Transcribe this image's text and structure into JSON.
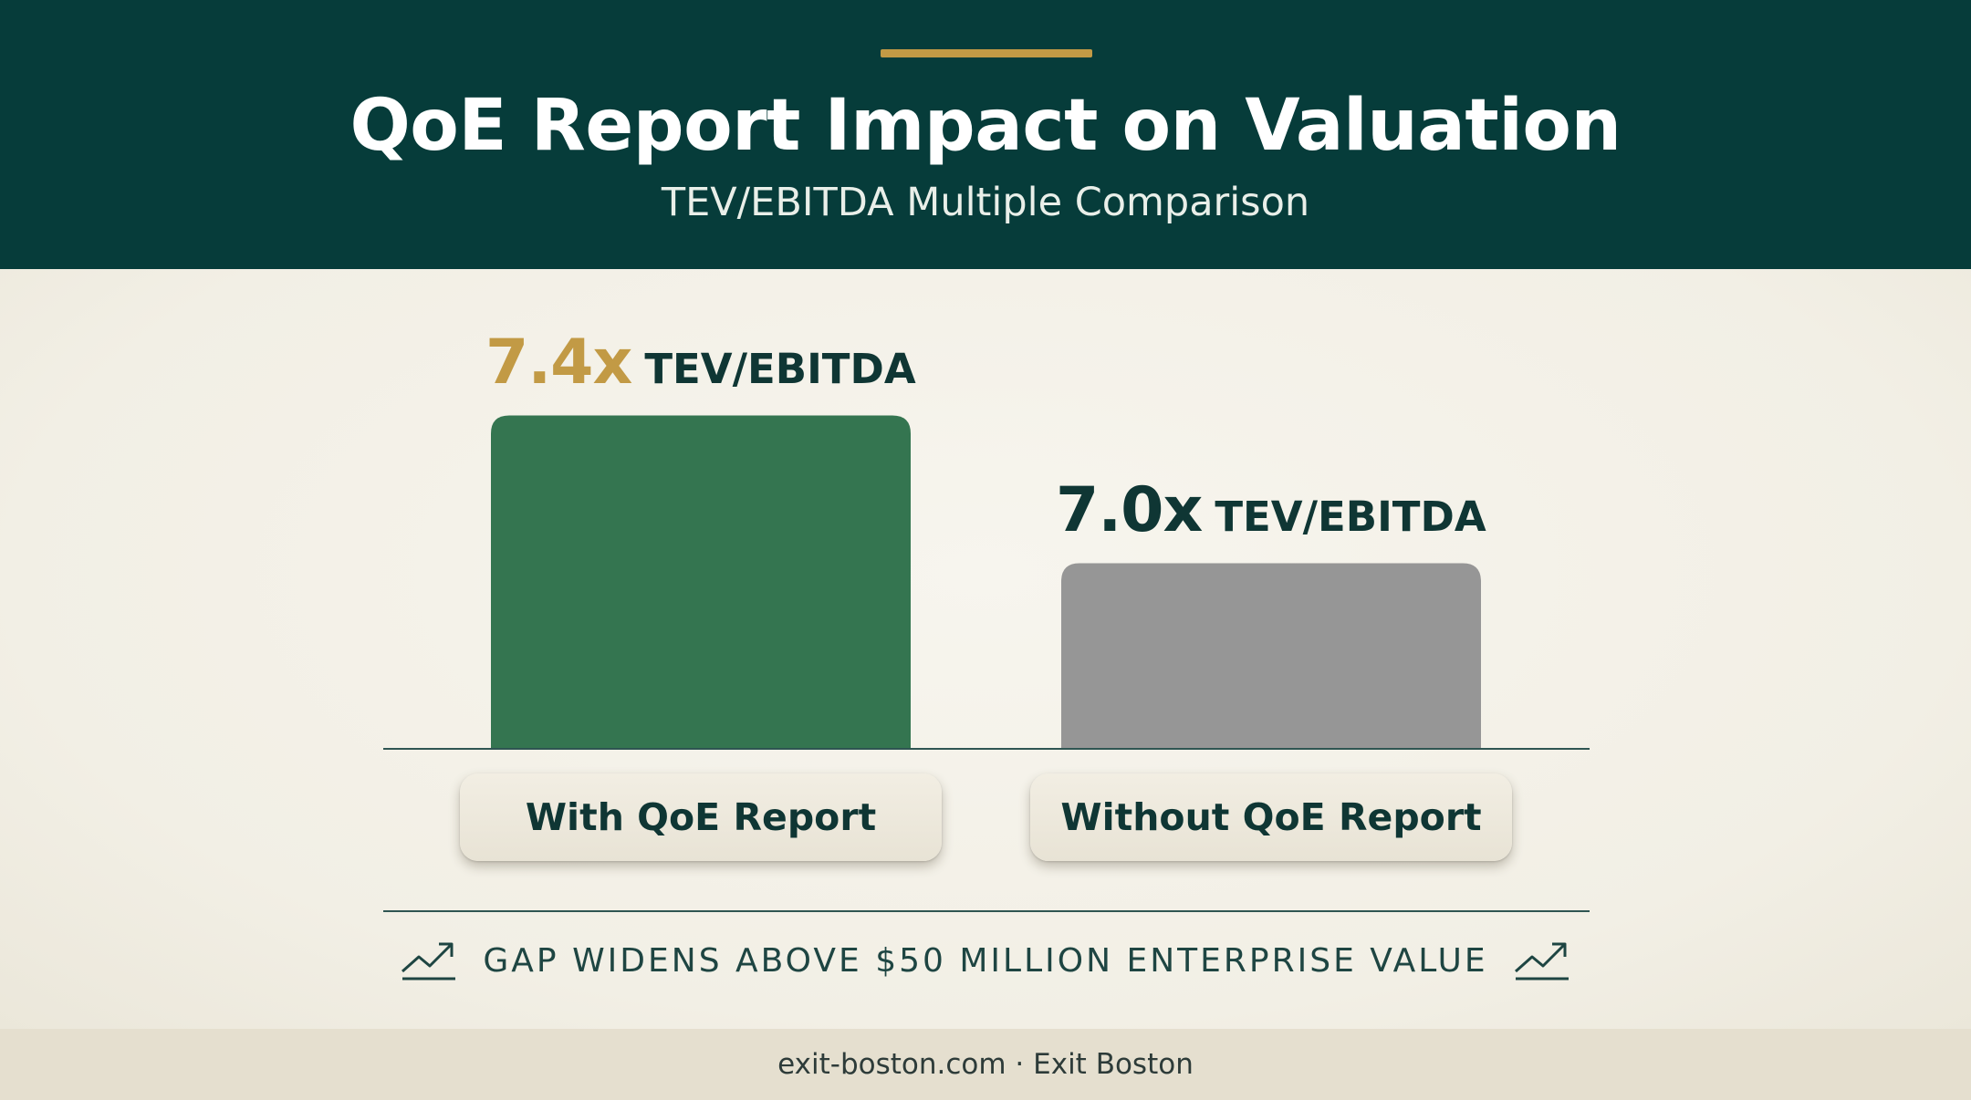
{
  "header": {
    "title": "QoE Report Impact on Valuation",
    "subtitle": "TEV/EBITDA Multiple Comparison"
  },
  "chart_data": {
    "type": "bar",
    "title": "QoE Report Impact on Valuation",
    "subtitle": "TEV/EBITDA Multiple Comparison",
    "categories": [
      "With QoE Report",
      "Without QoE Report"
    ],
    "values": [
      7.4,
      7.0
    ],
    "value_labels": [
      "7.4x",
      "7.0x"
    ],
    "value_unit": "TEV/EBITDA",
    "bar_colors": [
      "#347550",
      "#969696"
    ],
    "value_label_colors": [
      "#c29a45",
      "#0f3634"
    ],
    "xlabel": "",
    "ylabel": "",
    "grid": false,
    "legend": "none",
    "annotation": "GAP WIDENS ABOVE $50 MILLION ENTERPRISE VALUE"
  },
  "note": {
    "text": "GAP WIDENS ABOVE $50 MILLION ENTERPRISE VALUE",
    "icon": "trend-up-icon"
  },
  "footer": {
    "text": "exit-boston.com · Exit Boston"
  },
  "colors": {
    "header_bg": "#063c3a",
    "accent_gold": "#c29a45",
    "page_bg": "#f3f0e6",
    "text_dark": "#0f3634"
  }
}
